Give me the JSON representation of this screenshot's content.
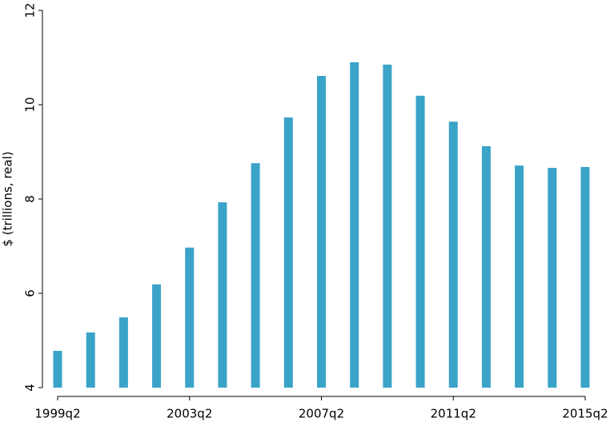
{
  "chart_data": {
    "type": "bar",
    "y_label": "$ (trillions, real)",
    "categories": [
      "1999q2",
      null,
      null,
      null,
      "2003q2",
      null,
      null,
      null,
      "2007q2",
      null,
      null,
      null,
      "2011q2",
      null,
      null,
      null,
      "2015q2"
    ],
    "values": [
      4.78,
      5.17,
      5.49,
      6.19,
      6.97,
      7.93,
      8.76,
      9.73,
      10.61,
      10.9,
      10.85,
      10.19,
      9.64,
      9.12,
      8.71,
      8.66,
      8.68
    ],
    "color": "#3aa3c8",
    "ylim": [
      4,
      12
    ],
    "yticks": [
      4,
      6,
      8,
      10,
      12
    ]
  }
}
